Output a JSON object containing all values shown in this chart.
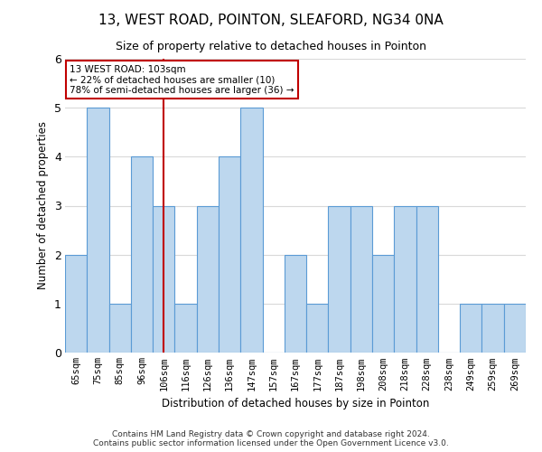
{
  "title1": "13, WEST ROAD, POINTON, SLEAFORD, NG34 0NA",
  "title2": "Size of property relative to detached houses in Pointon",
  "xlabel": "Distribution of detached houses by size in Pointon",
  "ylabel": "Number of detached properties",
  "categories": [
    "65sqm",
    "75sqm",
    "85sqm",
    "96sqm",
    "106sqm",
    "116sqm",
    "126sqm",
    "136sqm",
    "147sqm",
    "157sqm",
    "167sqm",
    "177sqm",
    "187sqm",
    "198sqm",
    "208sqm",
    "218sqm",
    "228sqm",
    "238sqm",
    "249sqm",
    "259sqm",
    "269sqm"
  ],
  "values": [
    2,
    5,
    1,
    4,
    3,
    1,
    3,
    4,
    5,
    0,
    2,
    1,
    3,
    3,
    2,
    3,
    3,
    0,
    1,
    1,
    1
  ],
  "bar_color": "#bdd7ee",
  "bar_edge_color": "#5b9bd5",
  "property_index": 4,
  "property_label": "13 WEST ROAD: 103sqm",
  "annotation_line1": "← 22% of detached houses are smaller (10)",
  "annotation_line2": "78% of semi-detached houses are larger (36) →",
  "vline_color": "#c00000",
  "annotation_box_color": "#ffffff",
  "annotation_box_edge": "#c00000",
  "footer1": "Contains HM Land Registry data © Crown copyright and database right 2024.",
  "footer2": "Contains public sector information licensed under the Open Government Licence v3.0.",
  "ylim": [
    0,
    6
  ],
  "background_color": "#ffffff",
  "grid_color": "#d9d9d9"
}
